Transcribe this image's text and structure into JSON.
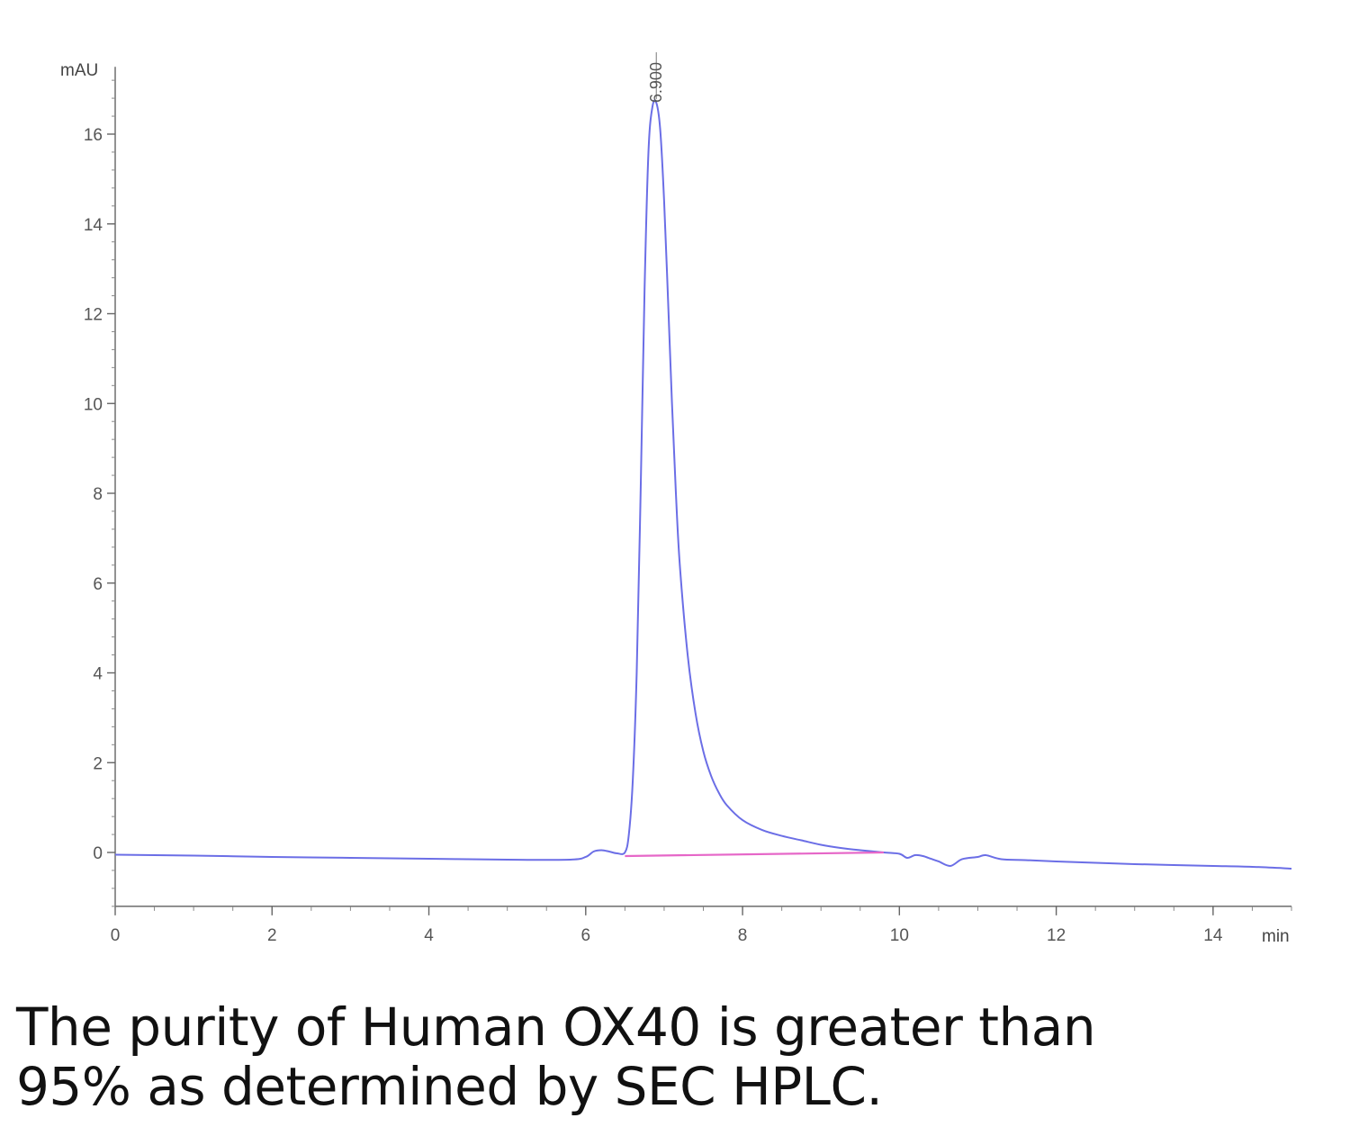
{
  "chart_data": {
    "type": "line",
    "ylabel": "mAU",
    "xlabel": "min",
    "xlim": [
      0,
      15
    ],
    "ylim": [
      -1.2,
      17.5
    ],
    "x_ticks": [
      0,
      2,
      4,
      6,
      8,
      10,
      12,
      14
    ],
    "x_tick_labels": [
      "0",
      "2",
      "4",
      "6",
      "8",
      "10",
      "12",
      "14"
    ],
    "y_ticks": [
      0,
      2,
      4,
      6,
      8,
      10,
      12,
      14,
      16
    ],
    "y_tick_labels": [
      "0",
      "2",
      "4",
      "6",
      "8",
      "10",
      "12",
      "14",
      "16"
    ],
    "grid": false,
    "series": [
      {
        "color": "#6b6ee6",
        "x": [
          0,
          1,
          2,
          3,
          4,
          5,
          5.8,
          6.0,
          6.1,
          6.2,
          6.3,
          6.4,
          6.5,
          6.55,
          6.6,
          6.65,
          6.7,
          6.75,
          6.8,
          6.85,
          6.9,
          6.95,
          7.0,
          7.05,
          7.1,
          7.15,
          7.2,
          7.3,
          7.4,
          7.5,
          7.6,
          7.7,
          7.8,
          8.0,
          8.25,
          8.5,
          8.75,
          9.0,
          9.25,
          9.5,
          9.8,
          10.0,
          10.1,
          10.2,
          10.3,
          10.4,
          10.5,
          10.65,
          10.8,
          11.0,
          11.1,
          11.3,
          11.6,
          12,
          12.5,
          13,
          13.5,
          14,
          14.5,
          15
        ],
        "y": [
          -0.05,
          -0.07,
          -0.1,
          -0.12,
          -0.14,
          -0.16,
          -0.16,
          -0.1,
          0.02,
          0.05,
          0.02,
          -0.02,
          0.0,
          0.4,
          1.6,
          4.0,
          8.0,
          12.5,
          15.6,
          16.6,
          16.7,
          16.1,
          14.5,
          12.3,
          10.0,
          8.0,
          6.4,
          4.4,
          3.1,
          2.25,
          1.7,
          1.32,
          1.05,
          0.72,
          0.5,
          0.37,
          0.27,
          0.17,
          0.1,
          0.05,
          0.0,
          -0.03,
          -0.12,
          -0.06,
          -0.08,
          -0.14,
          -0.2,
          -0.3,
          -0.15,
          -0.1,
          -0.06,
          -0.15,
          -0.17,
          -0.2,
          -0.23,
          -0.26,
          -0.28,
          -0.3,
          -0.32,
          -0.36
        ]
      },
      {
        "color": "#e667c8",
        "x": [
          6.5,
          9.8
        ],
        "y": [
          -0.08,
          0.0
        ]
      }
    ],
    "annotations": [
      {
        "text": "6.900",
        "x": 6.9,
        "y": 16.7
      }
    ]
  },
  "caption": {
    "line1": "The purity of Human OX40 is greater than",
    "line2": "95% as determined by SEC HPLC."
  }
}
